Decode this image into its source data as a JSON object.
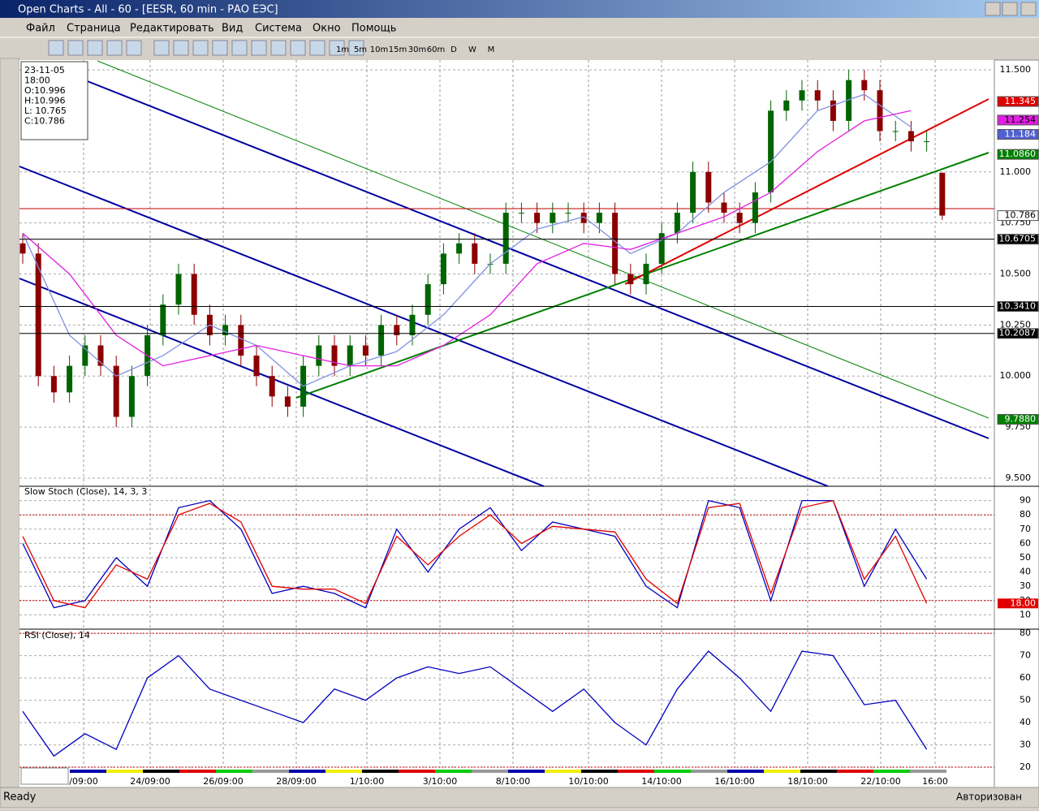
{
  "window": {
    "title": "Open Charts - All - 60 - [EESR, 60 min - РАО ЕЭС]",
    "status": "Ready",
    "status_right": "Авторизован"
  },
  "menu": [
    "Файл",
    "Страница",
    "Редактировать",
    "Вид",
    "Система",
    "Окно",
    "Помощь"
  ],
  "timeframes": [
    "1m",
    "5m",
    "10m",
    "15m",
    "30m",
    "60m",
    "D",
    "W",
    "M"
  ],
  "info": [
    "23-11-05",
    "18:00",
    "O:10.996",
    "H:10.996",
    "L: 10.765",
    "C:10.786"
  ],
  "price_chart": {
    "type": "candlestick",
    "up_color": "#006400",
    "down_color": "#8b0000",
    "open": [
      10.65,
      10.6,
      10.0,
      9.92,
      10.05,
      10.15,
      10.05,
      9.8,
      10.0,
      10.2,
      10.35,
      10.5,
      10.3,
      10.2,
      10.25,
      10.1,
      10.0,
      9.9,
      9.85,
      10.05,
      10.15,
      10.05,
      10.15,
      10.1,
      10.25,
      10.2,
      10.3,
      10.45,
      10.6,
      10.65,
      10.55,
      10.55,
      10.8,
      10.8,
      10.75,
      10.8,
      10.8,
      10.75,
      10.8,
      10.5,
      10.45,
      10.55,
      10.7,
      10.8,
      11.0,
      10.85,
      10.8,
      10.75,
      10.9,
      11.3,
      11.35,
      11.4,
      11.35,
      11.25,
      11.45,
      11.4,
      11.2,
      11.2,
      11.15,
      10.996
    ],
    "high": [
      10.7,
      10.65,
      10.05,
      10.1,
      10.2,
      10.2,
      10.1,
      10.05,
      10.25,
      10.4,
      10.55,
      10.55,
      10.35,
      10.3,
      10.3,
      10.15,
      10.05,
      9.95,
      10.1,
      10.2,
      10.2,
      10.2,
      10.2,
      10.3,
      10.3,
      10.35,
      10.5,
      10.65,
      10.7,
      10.7,
      10.6,
      10.85,
      10.85,
      10.85,
      10.85,
      10.85,
      10.85,
      10.85,
      10.85,
      10.55,
      10.6,
      10.75,
      10.85,
      11.05,
      11.05,
      10.9,
      10.85,
      10.95,
      11.35,
      11.4,
      11.45,
      11.45,
      11.4,
      11.5,
      11.5,
      11.45,
      11.25,
      11.25,
      11.2,
      10.996
    ],
    "low": [
      10.55,
      9.95,
      9.87,
      9.87,
      10.0,
      10.0,
      9.75,
      9.75,
      9.95,
      10.15,
      10.3,
      10.25,
      10.15,
      10.15,
      10.05,
      9.95,
      9.85,
      9.8,
      9.8,
      10.0,
      10.0,
      10.0,
      10.05,
      10.05,
      10.15,
      10.15,
      10.25,
      10.4,
      10.55,
      10.5,
      10.5,
      10.5,
      10.75,
      10.7,
      10.7,
      10.75,
      10.7,
      10.7,
      10.45,
      10.4,
      10.4,
      10.5,
      10.65,
      10.75,
      10.8,
      10.75,
      10.7,
      10.7,
      10.85,
      11.25,
      11.3,
      11.3,
      11.2,
      11.2,
      11.35,
      11.15,
      11.15,
      11.1,
      11.1,
      10.765
    ],
    "close": [
      10.6,
      10.0,
      9.92,
      10.05,
      10.15,
      10.05,
      9.8,
      10.0,
      10.2,
      10.35,
      10.5,
      10.3,
      10.2,
      10.25,
      10.1,
      10.0,
      9.9,
      9.85,
      10.05,
      10.15,
      10.05,
      10.15,
      10.1,
      10.25,
      10.2,
      10.3,
      10.45,
      10.6,
      10.65,
      10.55,
      10.55,
      10.8,
      10.8,
      10.75,
      10.8,
      10.8,
      10.75,
      10.8,
      10.5,
      10.45,
      10.55,
      10.7,
      10.8,
      11.0,
      10.85,
      10.8,
      10.75,
      10.9,
      11.3,
      11.35,
      11.4,
      11.35,
      11.25,
      11.45,
      11.4,
      11.2,
      11.2,
      11.15,
      11.15,
      10.786
    ],
    "moving_averages": [
      {
        "color": "#8090e0",
        "values": [
          10.7,
          10.2,
          10.0,
          10.1,
          10.25,
          10.15,
          9.95,
          10.05,
          10.12,
          10.3,
          10.55,
          10.72,
          10.78,
          10.6,
          10.7,
          10.9,
          11.05,
          11.3,
          11.38,
          11.22
        ]
      },
      {
        "color": "#e020e0",
        "values": [
          10.7,
          10.5,
          10.2,
          10.05,
          10.1,
          10.15,
          10.1,
          10.05,
          10.05,
          10.15,
          10.3,
          10.55,
          10.65,
          10.62,
          10.7,
          10.78,
          10.9,
          11.1,
          11.25,
          11.3
        ]
      }
    ],
    "ylim": [
      9.46,
      11.54
    ],
    "yticks": [
      {
        "value": 11.5,
        "label": "11.500"
      },
      {
        "value": 11.0,
        "label": "11.000"
      },
      {
        "value": 10.75,
        "label": "10.750"
      },
      {
        "value": 10.5,
        "label": "10.500"
      },
      {
        "value": 10.25,
        "label": "10.250"
      },
      {
        "value": 10.0,
        "label": "10.000"
      },
      {
        "value": 9.75,
        "label": "9.750"
      },
      {
        "value": 9.5,
        "label": "9.500"
      }
    ],
    "price_labels": [
      {
        "value": 11.345,
        "label": "11.345",
        "color": "#e00000"
      },
      {
        "value": 11.254,
        "label": "11.254",
        "color": "#e020e0"
      },
      {
        "value": 11.184,
        "label": "11.184",
        "color": "#5060d0"
      },
      {
        "value": 11.086,
        "label": "11.0860",
        "color": "#008000"
      },
      {
        "value": 10.786,
        "label": "10.786",
        "color": "#ffffff"
      },
      {
        "value": 10.6705,
        "label": "10.6705",
        "color": "#000000",
        "line": true
      },
      {
        "value": 10.341,
        "label": "10.3410",
        "color": "#000000",
        "line": true
      },
      {
        "value": 10.2087,
        "label": "10.2087",
        "color": "#000000",
        "line": true
      },
      {
        "value": 9.788,
        "label": "9.7880",
        "color": "#008000"
      }
    ]
  },
  "stoch": {
    "title": "Slow Stoch (Close), 14, 3, 3",
    "ylim": [
      0,
      100
    ],
    "yticks": [
      10,
      20,
      30,
      40,
      50,
      60,
      70,
      80,
      90
    ],
    "levels": [
      80,
      20
    ],
    "series": [
      {
        "color": "#0000c0",
        "values": [
          60,
          15,
          20,
          50,
          30,
          85,
          90,
          70,
          25,
          30,
          25,
          15,
          70,
          40,
          70,
          85,
          55,
          75,
          70,
          65,
          30,
          15,
          90,
          85,
          20,
          90,
          90,
          30,
          70,
          35
        ]
      },
      {
        "color": "#e00000",
        "values": [
          65,
          20,
          15,
          45,
          35,
          80,
          88,
          75,
          30,
          28,
          28,
          18,
          65,
          45,
          65,
          80,
          60,
          72,
          70,
          68,
          35,
          18,
          85,
          88,
          25,
          85,
          90,
          35,
          65,
          18
        ],
        "last_label": "18.00"
      }
    ]
  },
  "rsi": {
    "title": "RSI (Close), 14",
    "ylim": [
      18.2,
      81.5
    ],
    "yticks": [
      20,
      30,
      40,
      50,
      60,
      70,
      80
    ],
    "levels": [
      80,
      20
    ],
    "series": [
      {
        "color": "#0000c0",
        "values": [
          45,
          25,
          35,
          28,
          60,
          70,
          55,
          50,
          45,
          40,
          55,
          50,
          60,
          65,
          62,
          65,
          55,
          45,
          55,
          40,
          30,
          55,
          72,
          60,
          45,
          72,
          70,
          48,
          50,
          28
        ]
      }
    ]
  },
  "x_labels": [
    "/09:00",
    "24/09:00",
    "26/09:00",
    "28/09:00",
    "1/10:00",
    "3/10:00",
    "8/10:00",
    "10/10:00",
    "14/10:00",
    "16/10:00",
    "18/10:00",
    "22/10:00",
    "16:00"
  ]
}
